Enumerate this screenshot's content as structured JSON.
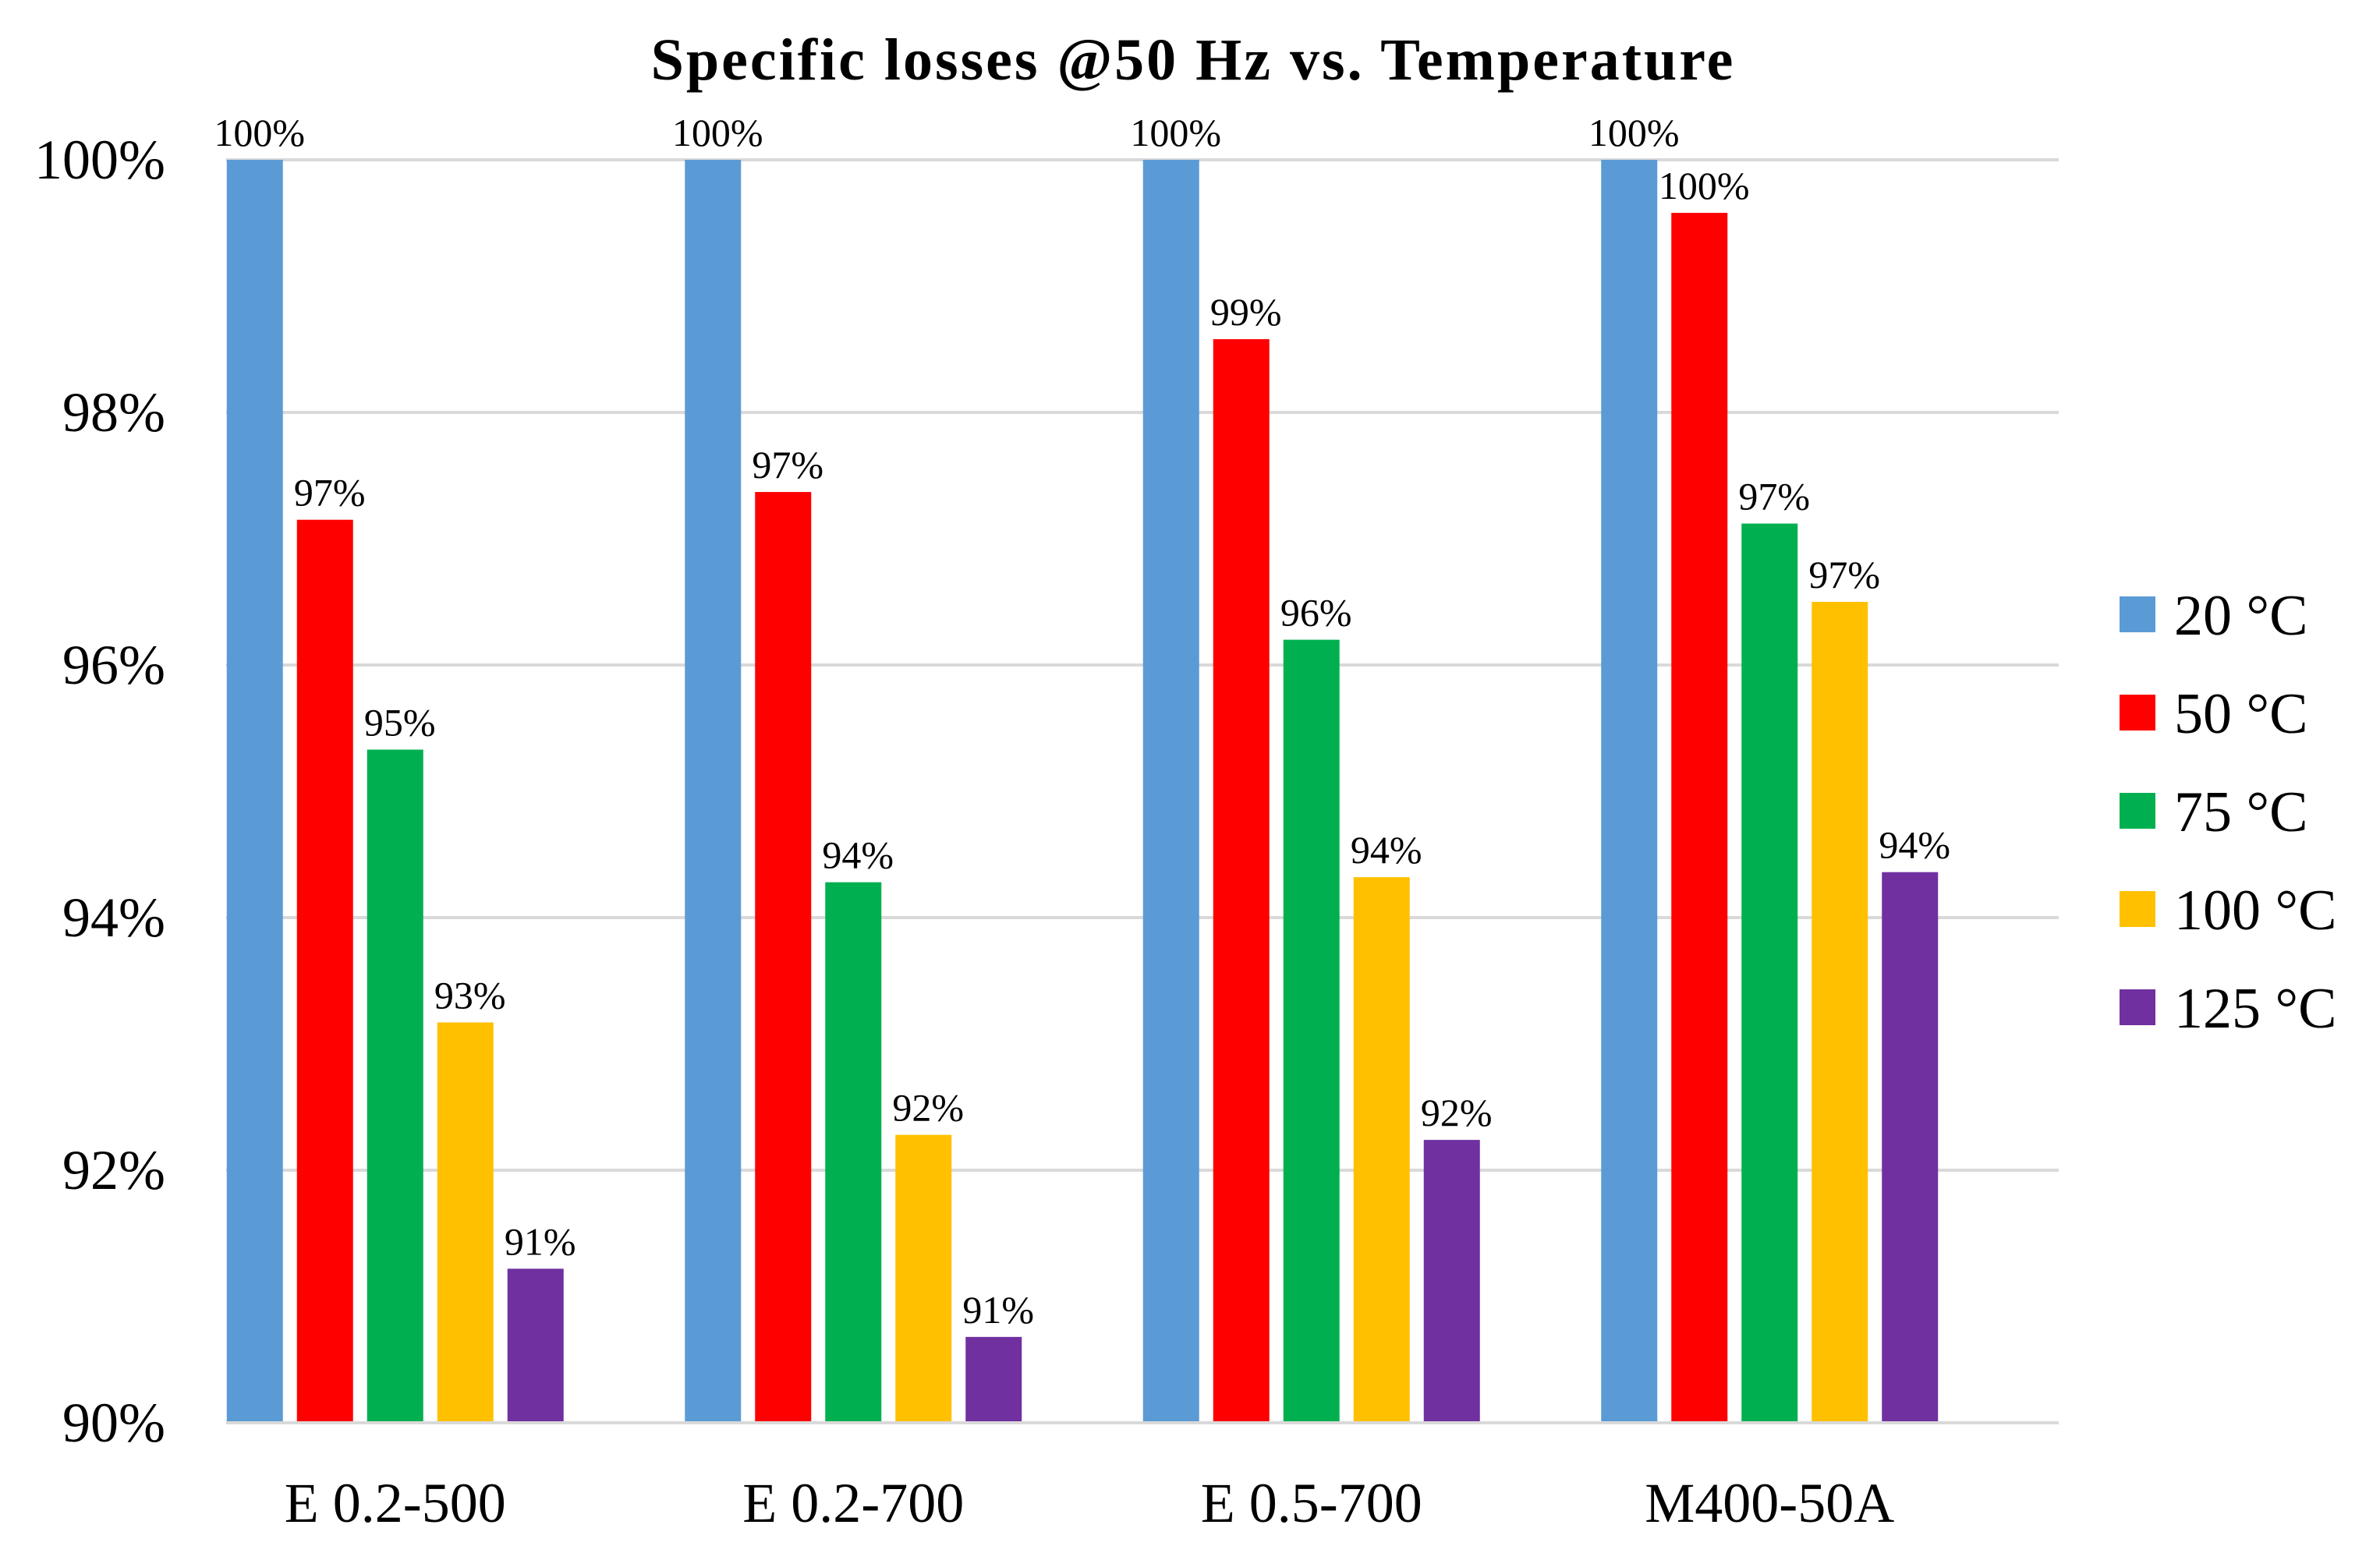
{
  "chart_data": {
    "type": "bar",
    "title": "Specific losses @50 Hz vs. Temperature",
    "xlabel": "",
    "ylabel": "",
    "ylim": [
      90,
      100
    ],
    "yticks": [
      90,
      92,
      94,
      96,
      98,
      100
    ],
    "ytick_labels": [
      "90%",
      "92%",
      "94%",
      "96%",
      "98%",
      "100%"
    ],
    "grid": true,
    "legend_position": "right",
    "categories": [
      "E 0.2-500",
      "E 0.2-700",
      "E 0.5-700",
      "M400-50A"
    ],
    "series": [
      {
        "name": "20 °C",
        "color": "#5b9bd5",
        "values": [
          100,
          100,
          100,
          100
        ],
        "labels": [
          "100%",
          "100%",
          "100%",
          "100%"
        ]
      },
      {
        "name": "50 °C",
        "color": "#ff0000",
        "values": [
          97.15,
          97.37,
          98.58,
          99.58
        ],
        "labels": [
          "97%",
          "97%",
          "99%",
          "100%"
        ]
      },
      {
        "name": "75 °C",
        "color": "#00b050",
        "values": [
          95.33,
          94.28,
          96.2,
          97.12
        ],
        "labels": [
          "95%",
          "94%",
          "96%",
          "97%"
        ]
      },
      {
        "name": "100 °C",
        "color": "#ffc000",
        "values": [
          93.17,
          92.28,
          94.32,
          96.5
        ],
        "labels": [
          "93%",
          "92%",
          "94%",
          "97%"
        ]
      },
      {
        "name": "125 °C",
        "color": "#7030a0",
        "values": [
          91.22,
          90.68,
          92.24,
          94.36
        ],
        "labels": [
          "91%",
          "91%",
          "92%",
          "94%"
        ]
      }
    ]
  }
}
